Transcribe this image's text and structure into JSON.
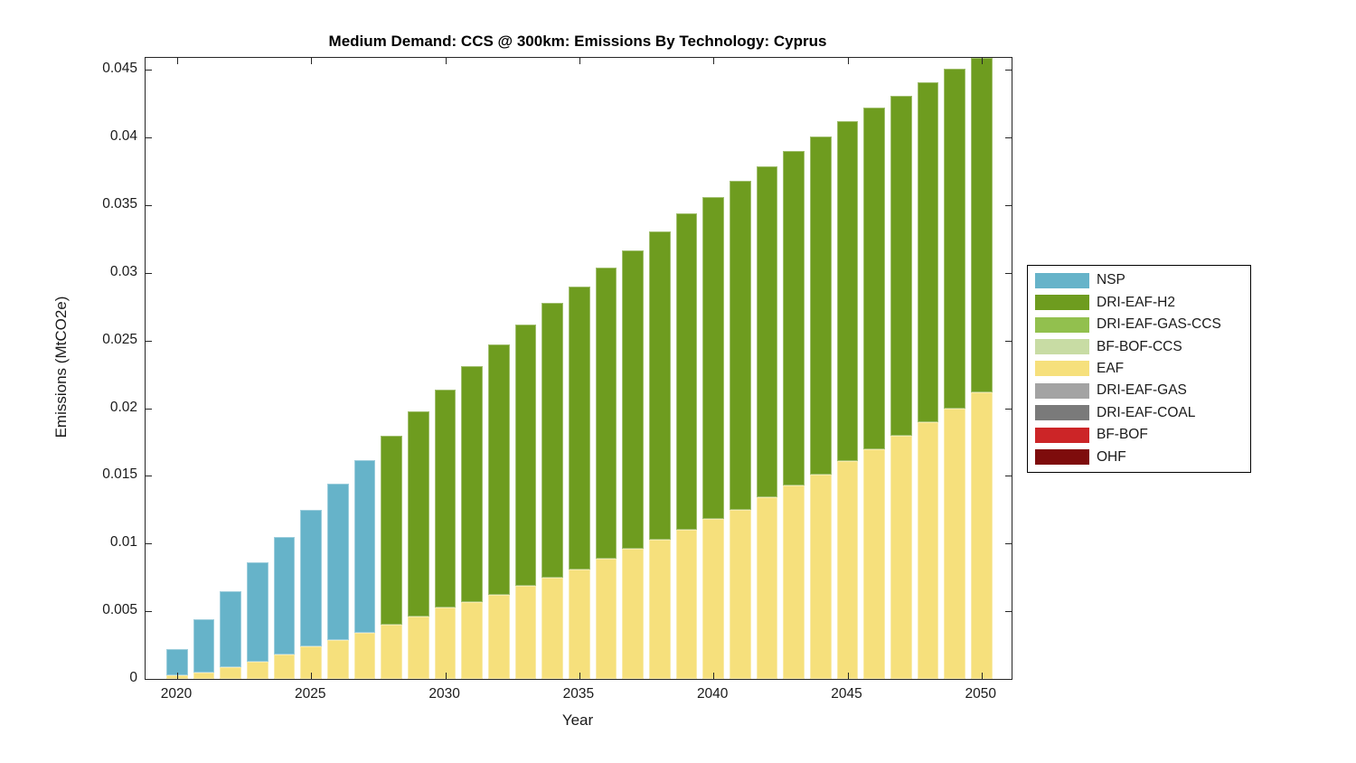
{
  "chart_data": {
    "type": "bar",
    "stacked": true,
    "title": "Medium Demand: CCS @ 300km: Emissions By Technology: Cyprus",
    "xlabel": "Year",
    "ylabel": "Emissions (MtCO2e)",
    "grid": false,
    "legend_position": "right-outside",
    "axis_color": "#262626",
    "years": [
      2020,
      2021,
      2022,
      2023,
      2024,
      2025,
      2026,
      2027,
      2028,
      2029,
      2030,
      2031,
      2032,
      2033,
      2034,
      2035,
      2036,
      2037,
      2038,
      2039,
      2040,
      2041,
      2042,
      2043,
      2044,
      2045,
      2046,
      2047,
      2048,
      2049,
      2050
    ],
    "xticks": [
      2020,
      2025,
      2030,
      2035,
      2040,
      2045,
      2050
    ],
    "xtick_labels": [
      "2020",
      "2025",
      "2030",
      "2035",
      "2040",
      "2045",
      "2050"
    ],
    "yticks": [
      0,
      0.005,
      0.01,
      0.015,
      0.02,
      0.025,
      0.03,
      0.035,
      0.04,
      0.045
    ],
    "ytick_labels": [
      "0",
      "0.005",
      "0.01",
      "0.015",
      "0.02",
      "0.025",
      "0.03",
      "0.035",
      "0.04",
      "0.045"
    ],
    "ylim": [
      0,
      0.0459
    ],
    "series": [
      {
        "name": "EAF",
        "color": "#F6E07C",
        "values": [
          0.0003,
          0.0005,
          0.0009,
          0.0013,
          0.0018,
          0.0024,
          0.0029,
          0.0034,
          0.004,
          0.0046,
          0.0053,
          0.0057,
          0.0062,
          0.0069,
          0.0075,
          0.0081,
          0.0089,
          0.0096,
          0.0103,
          0.011,
          0.0118,
          0.0125,
          0.0134,
          0.0143,
          0.0151,
          0.0161,
          0.017,
          0.018,
          0.019,
          0.02,
          0.0212
        ]
      },
      {
        "name": "NSP",
        "color": "#66B3C9",
        "values": [
          0.0019,
          0.0039,
          0.0056,
          0.0073,
          0.0087,
          0.0101,
          0.0115,
          0.0128,
          0,
          0,
          0,
          0,
          0,
          0,
          0,
          0,
          0,
          0,
          0,
          0,
          0,
          0,
          0,
          0,
          0,
          0,
          0,
          0,
          0,
          0,
          0
        ]
      },
      {
        "name": "DRI-EAF-H2",
        "color": "#6E9C1F",
        "values": [
          0,
          0,
          0,
          0,
          0,
          0,
          0,
          0,
          0.014,
          0.0152,
          0.0161,
          0.0174,
          0.0185,
          0.0193,
          0.0203,
          0.0209,
          0.0215,
          0.0221,
          0.0228,
          0.0234,
          0.0238,
          0.0243,
          0.0245,
          0.0247,
          0.025,
          0.0251,
          0.0252,
          0.0251,
          0.0251,
          0.0251,
          0.0248
        ]
      },
      {
        "name": "DRI-EAF-GAS-CCS",
        "color": "#92C04E",
        "values": [
          0,
          0,
          0,
          0,
          0,
          0,
          0,
          0,
          0,
          0,
          0,
          0,
          0,
          0,
          0,
          0,
          0,
          0,
          0,
          0,
          0,
          0,
          0,
          0,
          0,
          0,
          0,
          0,
          0,
          0,
          0
        ]
      },
      {
        "name": "BF-BOF-CCS",
        "color": "#C8DCA4",
        "values": [
          0,
          0,
          0,
          0,
          0,
          0,
          0,
          0,
          0,
          0,
          0,
          0,
          0,
          0,
          0,
          0,
          0,
          0,
          0,
          0,
          0,
          0,
          0,
          0,
          0,
          0,
          0,
          0,
          0,
          0,
          0
        ]
      },
      {
        "name": "DRI-EAF-GAS",
        "color": "#A3A3A3",
        "values": [
          0,
          0,
          0,
          0,
          0,
          0,
          0,
          0,
          0,
          0,
          0,
          0,
          0,
          0,
          0,
          0,
          0,
          0,
          0,
          0,
          0,
          0,
          0,
          0,
          0,
          0,
          0,
          0,
          0,
          0,
          0
        ]
      },
      {
        "name": "DRI-EAF-COAL",
        "color": "#7A7A7A",
        "values": [
          0,
          0,
          0,
          0,
          0,
          0,
          0,
          0,
          0,
          0,
          0,
          0,
          0,
          0,
          0,
          0,
          0,
          0,
          0,
          0,
          0,
          0,
          0,
          0,
          0,
          0,
          0,
          0,
          0,
          0,
          0
        ]
      },
      {
        "name": "BF-BOF",
        "color": "#CC2527",
        "values": [
          0,
          0,
          0,
          0,
          0,
          0,
          0,
          0,
          0,
          0,
          0,
          0,
          0,
          0,
          0,
          0,
          0,
          0,
          0,
          0,
          0,
          0,
          0,
          0,
          0,
          0,
          0,
          0,
          0,
          0,
          0
        ]
      },
      {
        "name": "OHF",
        "color": "#7E0C0C",
        "values": [
          0,
          0,
          0,
          0,
          0,
          0,
          0,
          0,
          0,
          0,
          0,
          0,
          0,
          0,
          0,
          0,
          0,
          0,
          0,
          0,
          0,
          0,
          0,
          0,
          0,
          0,
          0,
          0,
          0,
          0,
          0
        ]
      }
    ],
    "legend": [
      {
        "label": "NSP",
        "color": "#66B3C9"
      },
      {
        "label": "DRI-EAF-H2",
        "color": "#6E9C1F"
      },
      {
        "label": "DRI-EAF-GAS-CCS",
        "color": "#92C04E"
      },
      {
        "label": "BF-BOF-CCS",
        "color": "#C8DCA4"
      },
      {
        "label": "EAF",
        "color": "#F6E07C"
      },
      {
        "label": "DRI-EAF-GAS",
        "color": "#A3A3A3"
      },
      {
        "label": "DRI-EAF-COAL",
        "color": "#7A7A7A"
      },
      {
        "label": "BF-BOF",
        "color": "#CC2527"
      },
      {
        "label": "OHF",
        "color": "#7E0C0C"
      }
    ]
  }
}
